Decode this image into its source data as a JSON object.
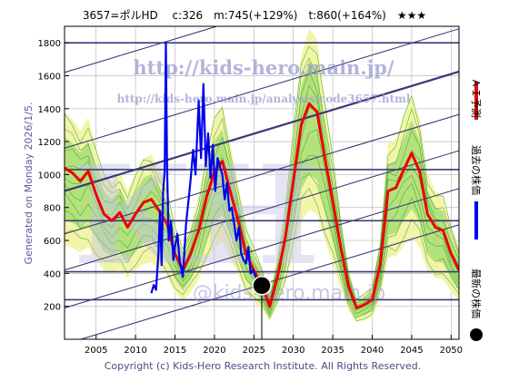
{
  "header": {
    "title": "3657=ポルHD　 c:326　m:745(+129%)　t:860(+164%)　★★★"
  },
  "side_label": "Generated on Monday 2026/1/5.",
  "copyright": "Copyright (c) Kids-Hero Research Institute. All Rights Reserved.",
  "watermark": {
    "site": "http://kids-hero.main.jp/",
    "page": "http://kids-hero.main.jp/analysis/code3657.html",
    "email": "@kids-hero.main.jp",
    "logo": "KH"
  },
  "legend": {
    "ai_forecast": "ＡＩ予測",
    "past_price": "過去の株価",
    "latest_price": "最新の株価"
  },
  "colors": {
    "ai_forecast": "#ee0000",
    "past_price": "#0000ee",
    "latest_marker": "#000000",
    "band_light": "#f2f5a8",
    "band_green": "#7fd15a",
    "channel": "#3a3a78"
  },
  "chart_data": {
    "type": "line",
    "title": "3657=ポルHD c:326 m:745(+129%) t:860(+164%) ★★★",
    "x_ticks": [
      2005,
      2010,
      2015,
      2020,
      2025,
      2030,
      2035,
      2040,
      2045,
      2050
    ],
    "y_ticks": [
      200,
      400,
      600,
      800,
      1000,
      1200,
      1400,
      1600,
      1800
    ],
    "xlim": [
      2001,
      2051
    ],
    "ylim": [
      0,
      1900
    ],
    "latest": {
      "x": 2026.0,
      "y": 326
    },
    "horizontal_levels": [
      240,
      410,
      720,
      1030,
      1800
    ],
    "past_price": {
      "name": "過去の株価",
      "x": [
        2012.0,
        2012.3,
        2012.6,
        2012.9,
        2013.1,
        2013.3,
        2013.5,
        2013.7,
        2013.85,
        2014.0,
        2014.2,
        2014.5,
        2014.8,
        2015.0,
        2015.3,
        2015.6,
        2016.0,
        2016.4,
        2016.8,
        2017.0,
        2017.3,
        2017.6,
        2018.0,
        2018.3,
        2018.6,
        2018.9,
        2019.2,
        2019.5,
        2019.8,
        2020.1,
        2020.4,
        2020.7,
        2021.0,
        2021.3,
        2021.6,
        2021.9,
        2022.2,
        2022.5,
        2022.8,
        2023.1,
        2023.4,
        2023.7,
        2024.0,
        2024.3,
        2024.6,
        2024.9,
        2025.2,
        2025.5,
        2025.8,
        2026.0
      ],
      "y": [
        280,
        330,
        300,
        520,
        780,
        450,
        900,
        1020,
        1800,
        1050,
        600,
        720,
        480,
        560,
        640,
        480,
        380,
        700,
        880,
        980,
        1150,
        1000,
        1450,
        1100,
        1550,
        1050,
        1250,
        980,
        1180,
        900,
        1100,
        1050,
        1000,
        850,
        950,
        780,
        800,
        700,
        600,
        680,
        520,
        480,
        460,
        560,
        400,
        420,
        380,
        360,
        340,
        326
      ]
    },
    "ai_forecast": {
      "name": "ＡＩ予測",
      "x": [
        2001.0,
        2002.0,
        2003.0,
        2004.0,
        2005.0,
        2006.0,
        2007.0,
        2008.0,
        2009.0,
        2010.0,
        2011.0,
        2012.0,
        2013.0,
        2014.0,
        2015.0,
        2016.0,
        2017.0,
        2018.0,
        2019.0,
        2020.0,
        2021.0,
        2022.0,
        2023.0,
        2024.0,
        2025.0,
        2026.0,
        2027.0,
        2028.0,
        2029.0,
        2030.0,
        2031.0,
        2032.0,
        2033.0,
        2034.0,
        2035.0,
        2036.0,
        2037.0,
        2038.0,
        2039.0,
        2040.0,
        2041.0,
        2042.0,
        2043.0,
        2044.0,
        2045.0,
        2046.0,
        2047.0,
        2048.0,
        2049.0,
        2050.0,
        2051.0
      ],
      "y": [
        1040,
        1010,
        960,
        1020,
        880,
        760,
        720,
        770,
        680,
        760,
        830,
        850,
        780,
        700,
        520,
        420,
        520,
        660,
        860,
        1020,
        1080,
        900,
        720,
        520,
        420,
        330,
        200,
        380,
        620,
        960,
        1300,
        1430,
        1380,
        1100,
        840,
        560,
        320,
        190,
        210,
        240,
        450,
        900,
        920,
        1030,
        1130,
        1020,
        760,
        680,
        660,
        520,
        420
      ]
    }
  }
}
